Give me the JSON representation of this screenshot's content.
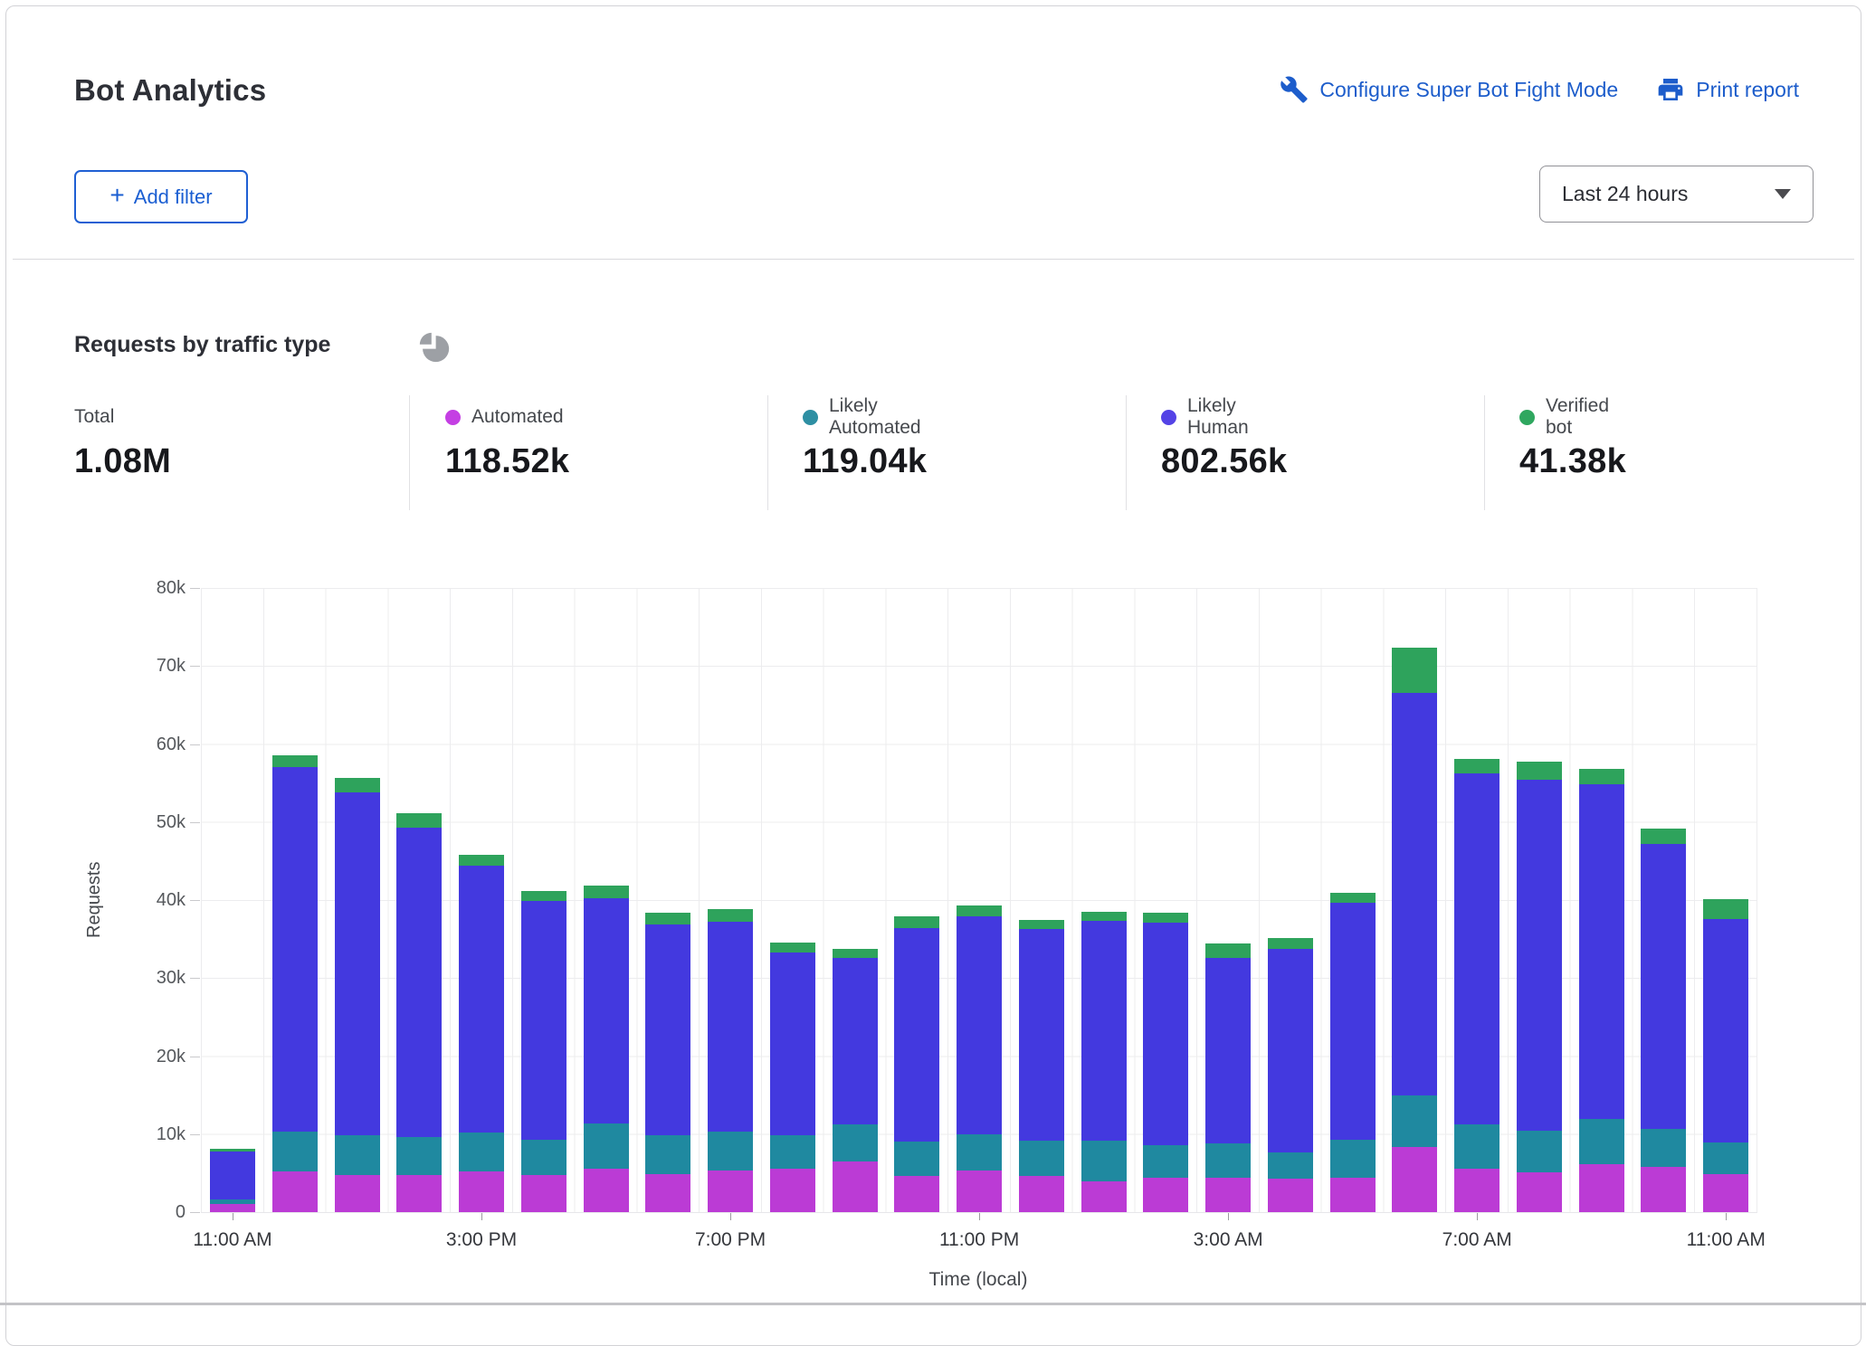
{
  "header": {
    "title": "Bot Analytics",
    "configure_link": "Configure Super Bot Fight Mode",
    "print_link": "Print report",
    "add_filter": "Add filter",
    "plus": "+",
    "time_range": "Last 24 hours"
  },
  "section": {
    "heading": "Requests by traffic type"
  },
  "stats": [
    {
      "label": "Total",
      "value": "1.08M",
      "dot": ""
    },
    {
      "label": "Automated",
      "value": "118.52k",
      "dot": "#c43fe3"
    },
    {
      "label": "Likely Automated",
      "value": "119.04k",
      "dot": "#2e8fa3"
    },
    {
      "label": "Likely Human",
      "value": "802.56k",
      "dot": "#5443e6"
    },
    {
      "label": "Verified bot",
      "value": "41.38k",
      "dot": "#2fa75f"
    }
  ],
  "chart_data": {
    "type": "bar",
    "stacked": true,
    "title": "Requests by traffic type",
    "xlabel": "Time (local)",
    "ylabel": "Requests",
    "ylim": [
      0,
      80000
    ],
    "grid": true,
    "ytick_labels": [
      "0",
      "10k",
      "20k",
      "30k",
      "40k",
      "50k",
      "60k",
      "70k",
      "80k"
    ],
    "x": [
      "11:00 AM",
      "12:00 PM",
      "1:00 PM",
      "2:00 PM",
      "3:00 PM",
      "4:00 PM",
      "5:00 PM",
      "6:00 PM",
      "7:00 PM",
      "8:00 PM",
      "9:00 PM",
      "10:00 PM",
      "11:00 PM",
      "12:00 AM",
      "1:00 AM",
      "2:00 AM",
      "3:00 AM",
      "4:00 AM",
      "5:00 AM",
      "6:00 AM",
      "7:00 AM",
      "8:00 AM",
      "9:00 AM",
      "10:00 AM",
      "11:00 AM"
    ],
    "xtick_every": 4,
    "series": [
      {
        "name": "Automated",
        "color": "#bb3bd5",
        "values": [
          1000,
          5200,
          4700,
          4700,
          5200,
          4800,
          5600,
          4900,
          5300,
          5600,
          6500,
          4600,
          5300,
          4600,
          3900,
          4400,
          4400,
          4300,
          4400,
          8300,
          5600,
          5100,
          6200,
          5800,
          4900
        ]
      },
      {
        "name": "Likely Automated",
        "color": "#1f89a0",
        "values": [
          600,
          5100,
          5100,
          4900,
          5000,
          4500,
          5800,
          5000,
          5000,
          4300,
          4700,
          4500,
          4700,
          4600,
          5300,
          4200,
          4400,
          3300,
          4900,
          6700,
          5700,
          5300,
          5800,
          4900,
          4000
        ]
      },
      {
        "name": "Likely Human",
        "color": "#4339df",
        "values": [
          6200,
          46800,
          44000,
          39700,
          34200,
          30600,
          28800,
          27000,
          26900,
          23400,
          21400,
          27300,
          27900,
          27100,
          28100,
          28500,
          23800,
          26100,
          30400,
          51500,
          44900,
          45000,
          42800,
          36500,
          28700
        ]
      },
      {
        "name": "Verified bot",
        "color": "#2ea35c",
        "values": [
          300,
          1400,
          1900,
          1800,
          1400,
          1300,
          1700,
          1500,
          1700,
          1200,
          1100,
          1500,
          1400,
          1200,
          1200,
          1300,
          1800,
          1400,
          1200,
          5900,
          1900,
          2300,
          2000,
          2000,
          2500
        ]
      }
    ]
  }
}
